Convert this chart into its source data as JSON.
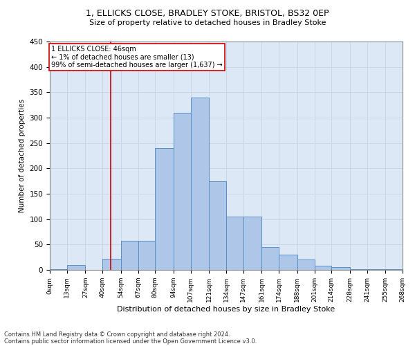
{
  "title": "1, ELLICKS CLOSE, BRADLEY STOKE, BRISTOL, BS32 0EP",
  "subtitle": "Size of property relative to detached houses in Bradley Stoke",
  "xlabel": "Distribution of detached houses by size in Bradley Stoke",
  "ylabel": "Number of detached properties",
  "footer_line1": "Contains HM Land Registry data © Crown copyright and database right 2024.",
  "footer_line2": "Contains public sector information licensed under the Open Government Licence v3.0.",
  "bin_edges": [
    0,
    13,
    27,
    40,
    54,
    67,
    80,
    94,
    107,
    121,
    134,
    147,
    161,
    174,
    188,
    201,
    214,
    228,
    241,
    255,
    268
  ],
  "bar_heights": [
    2,
    10,
    0,
    22,
    57,
    57,
    240,
    310,
    340,
    175,
    105,
    105,
    45,
    30,
    20,
    8,
    5,
    2,
    2,
    2
  ],
  "bar_color": "#aec6e8",
  "bar_edge_color": "#5a8fc4",
  "property_size": 46,
  "annotation_line1": "1 ELLICKS CLOSE: 46sqm",
  "annotation_line2": "← 1% of detached houses are smaller (13)",
  "annotation_line3": "99% of semi-detached houses are larger (1,637) →",
  "vline_color": "#cc0000",
  "annotation_box_color": "#ffffff",
  "annotation_box_edge": "#cc0000",
  "grid_color": "#c8d8e8",
  "background_color": "#dce8f5",
  "ylim": [
    0,
    450
  ],
  "yticks": [
    0,
    50,
    100,
    150,
    200,
    250,
    300,
    350,
    400,
    450
  ],
  "tick_labels": [
    "0sqm",
    "13sqm",
    "27sqm",
    "40sqm",
    "54sqm",
    "67sqm",
    "80sqm",
    "94sqm",
    "107sqm",
    "121sqm",
    "134sqm",
    "147sqm",
    "161sqm",
    "174sqm",
    "188sqm",
    "201sqm",
    "214sqm",
    "228sqm",
    "241sqm",
    "255sqm",
    "268sqm"
  ],
  "title_fontsize": 9,
  "subtitle_fontsize": 8,
  "xlabel_fontsize": 8,
  "ylabel_fontsize": 7.5,
  "xtick_fontsize": 6.5,
  "ytick_fontsize": 7.5,
  "annotation_fontsize": 7,
  "footer_fontsize": 6
}
